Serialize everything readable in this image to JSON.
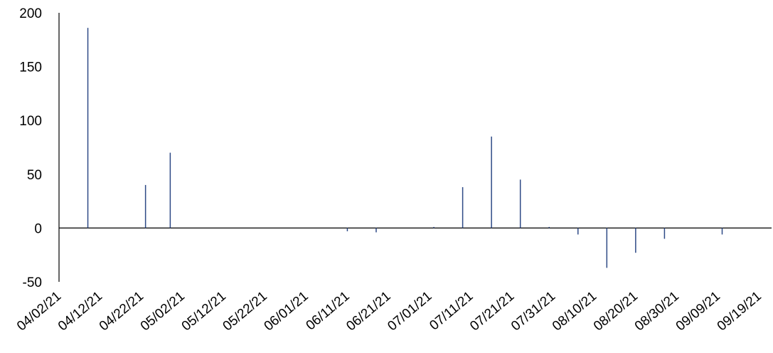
{
  "chart_data": {
    "type": "bar",
    "color": "#2e4a86",
    "x": [
      "04/09/21",
      "04/23/21",
      "04/29/21",
      "06/11/21",
      "06/18/21",
      "07/02/21",
      "07/09/21",
      "07/16/21",
      "07/23/21",
      "07/30/21",
      "08/06/21",
      "08/13/21",
      "08/20/21",
      "08/27/21",
      "09/10/21"
    ],
    "values": [
      186,
      40,
      70,
      -3,
      -4,
      1,
      38,
      85,
      45,
      1,
      -6,
      -37,
      -23,
      -10,
      -6
    ],
    "xlim": [
      "04/02/21",
      "09/22/21"
    ],
    "xticks": [
      "04/02/21",
      "04/12/21",
      "04/22/21",
      "05/02/21",
      "05/12/21",
      "05/22/21",
      "06/01/21",
      "06/11/21",
      "06/21/21",
      "07/01/21",
      "07/11/21",
      "07/21/21",
      "07/31/21",
      "08/10/21",
      "08/20/21",
      "08/30/21",
      "09/09/21",
      "09/19/21"
    ],
    "ylim": [
      -50,
      200
    ],
    "yticks": [
      -50,
      0,
      50,
      100,
      150,
      200
    ],
    "grid": false
  }
}
